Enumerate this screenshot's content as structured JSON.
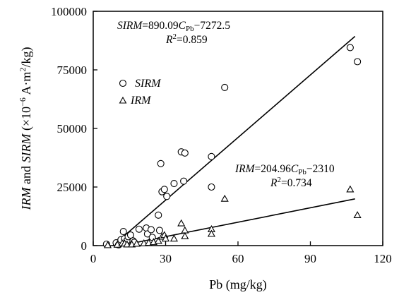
{
  "chart_data": {
    "type": "scatter",
    "xlabel": "Pb (mg/kg)",
    "ylabel": {
      "prefix_italic_1": "IRM",
      "mid": " and ",
      "prefix_italic_2": "SIRM",
      "unit_open": " (×10",
      "unit_exp": "−6",
      "unit_mid": " A·m",
      "unit_exp2": "2",
      "unit_close": "/kg)"
    },
    "xlim": [
      0,
      120
    ],
    "ylim": [
      0,
      100000
    ],
    "x_ticks": [
      0,
      30,
      60,
      90,
      120
    ],
    "y_ticks": [
      0,
      25000,
      50000,
      75000,
      100000
    ],
    "x_tick_labels": [
      "0",
      "30",
      "60",
      "90",
      "120"
    ],
    "y_tick_labels": [
      "0",
      "25000",
      "50000",
      "75000",
      "100000"
    ],
    "legend": {
      "placement": "upper-left",
      "entries": [
        {
          "label": "SIRM",
          "marker": "circle"
        },
        {
          "label": "IRM",
          "marker": "triangle"
        }
      ]
    },
    "series": [
      {
        "name": "SIRM",
        "marker": "circle",
        "points": [
          [
            5.5,
            600
          ],
          [
            9.5,
            1200
          ],
          [
            10.5,
            300
          ],
          [
            11,
            800
          ],
          [
            11.5,
            2500
          ],
          [
            12.5,
            6000
          ],
          [
            13,
            3000
          ],
          [
            14,
            2200
          ],
          [
            14.5,
            3800
          ],
          [
            15.5,
            4500
          ],
          [
            16.5,
            2000
          ],
          [
            17,
            1400
          ],
          [
            19,
            7000
          ],
          [
            22,
            7500
          ],
          [
            22.5,
            5000
          ],
          [
            24,
            6800
          ],
          [
            24.5,
            3500
          ],
          [
            27,
            13000
          ],
          [
            27.5,
            6500
          ],
          [
            28,
            35000
          ],
          [
            28.5,
            23000
          ],
          [
            29.5,
            24000
          ],
          [
            30.5,
            21000
          ],
          [
            33.5,
            26500
          ],
          [
            36.5,
            40000
          ],
          [
            38,
            39500
          ],
          [
            37.5,
            27500
          ],
          [
            49,
            38000
          ],
          [
            49,
            25000
          ],
          [
            54.5,
            67500
          ],
          [
            106.5,
            84500
          ],
          [
            109.5,
            78500
          ]
        ]
      },
      {
        "name": "IRM",
        "marker": "triangle",
        "points": [
          [
            6,
            200
          ],
          [
            10,
            400
          ],
          [
            12,
            1000
          ],
          [
            13,
            900
          ],
          [
            14,
            500
          ],
          [
            16,
            500
          ],
          [
            18,
            800
          ],
          [
            21,
            1000
          ],
          [
            23,
            1200
          ],
          [
            25,
            1500
          ],
          [
            27,
            2000
          ],
          [
            28.5,
            3800
          ],
          [
            29.5,
            4500
          ],
          [
            30,
            3000
          ],
          [
            33.5,
            3000
          ],
          [
            36.5,
            9500
          ],
          [
            38,
            6500
          ],
          [
            38,
            4000
          ],
          [
            49,
            7000
          ],
          [
            49,
            5000
          ],
          [
            54.5,
            20000
          ],
          [
            106.5,
            24000
          ],
          [
            109.5,
            13000
          ]
        ]
      }
    ],
    "fit_lines": [
      {
        "series": "SIRM",
        "slope": 890.09,
        "intercept": -7272.5,
        "x_range": [
          8.17,
          108.5
        ],
        "equation": {
          "lhs": "SIRM",
          "rhs_a": "=890.09",
          "var": "C",
          "var_sub": "Pb",
          "rhs_b": "−7272.5"
        },
        "r2": {
          "sym": "R",
          "sup": "2",
          "val": "=0.859"
        }
      },
      {
        "series": "IRM",
        "slope": 204.96,
        "intercept": -2310,
        "x_range": [
          11.27,
          108.5
        ],
        "equation": {
          "lhs": "IRM",
          "rhs_a": "=204.96",
          "var": "C",
          "var_sub": "Pb",
          "rhs_b": "−2310"
        },
        "r2": {
          "sym": "R",
          "sup": "2",
          "val": "=0.734"
        }
      }
    ],
    "grid": false
  }
}
